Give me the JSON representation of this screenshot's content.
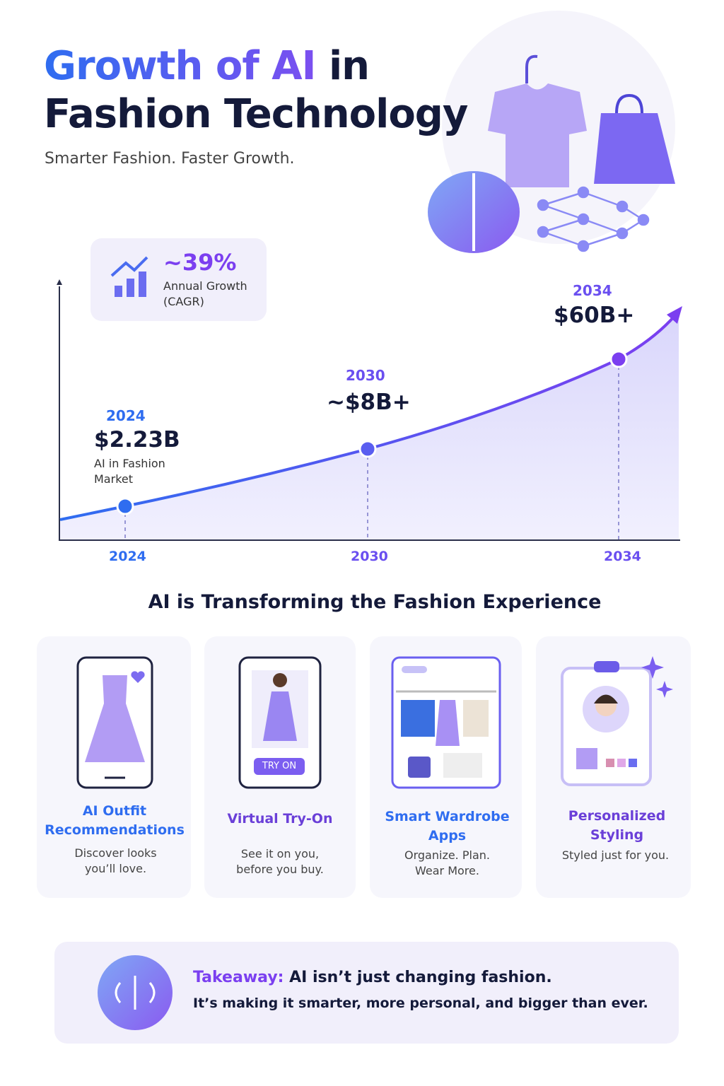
{
  "header": {
    "title_highlight": "Growth of AI",
    "title_rest": "in",
    "title_line2": "Fashion Technology",
    "subtitle": "Smarter Fashion. Faster Growth."
  },
  "cagr": {
    "value": "~39%",
    "label": "Annual Growth (CAGR)"
  },
  "milestones": [
    {
      "year": "2024",
      "value": "$2.23B",
      "note": "AI in Fashion Market"
    },
    {
      "year": "2030",
      "value": "~$8B+"
    },
    {
      "year": "2034",
      "value": "$60B+"
    }
  ],
  "axis_labels": [
    "2024",
    "2030",
    "2034"
  ],
  "section_title": "AI is Transforming the Fashion Experience",
  "cards": [
    {
      "title": "AI Outfit Recommendations",
      "text": "Discover looks you’ll love."
    },
    {
      "title": "Virtual Try-On",
      "badge": "TRY ON",
      "text": "See it on you, before you buy."
    },
    {
      "title": "Smart Wardrobe Apps",
      "text": "Organize. Plan. Wear More."
    },
    {
      "title": "Personalized Styling",
      "text": "Styled just for you."
    }
  ],
  "takeaway": {
    "label": "Takeaway:",
    "line1": "AI isn’t just changing fashion.",
    "line2": "It’s making it smarter, more personal, and bigger than ever."
  }
}
